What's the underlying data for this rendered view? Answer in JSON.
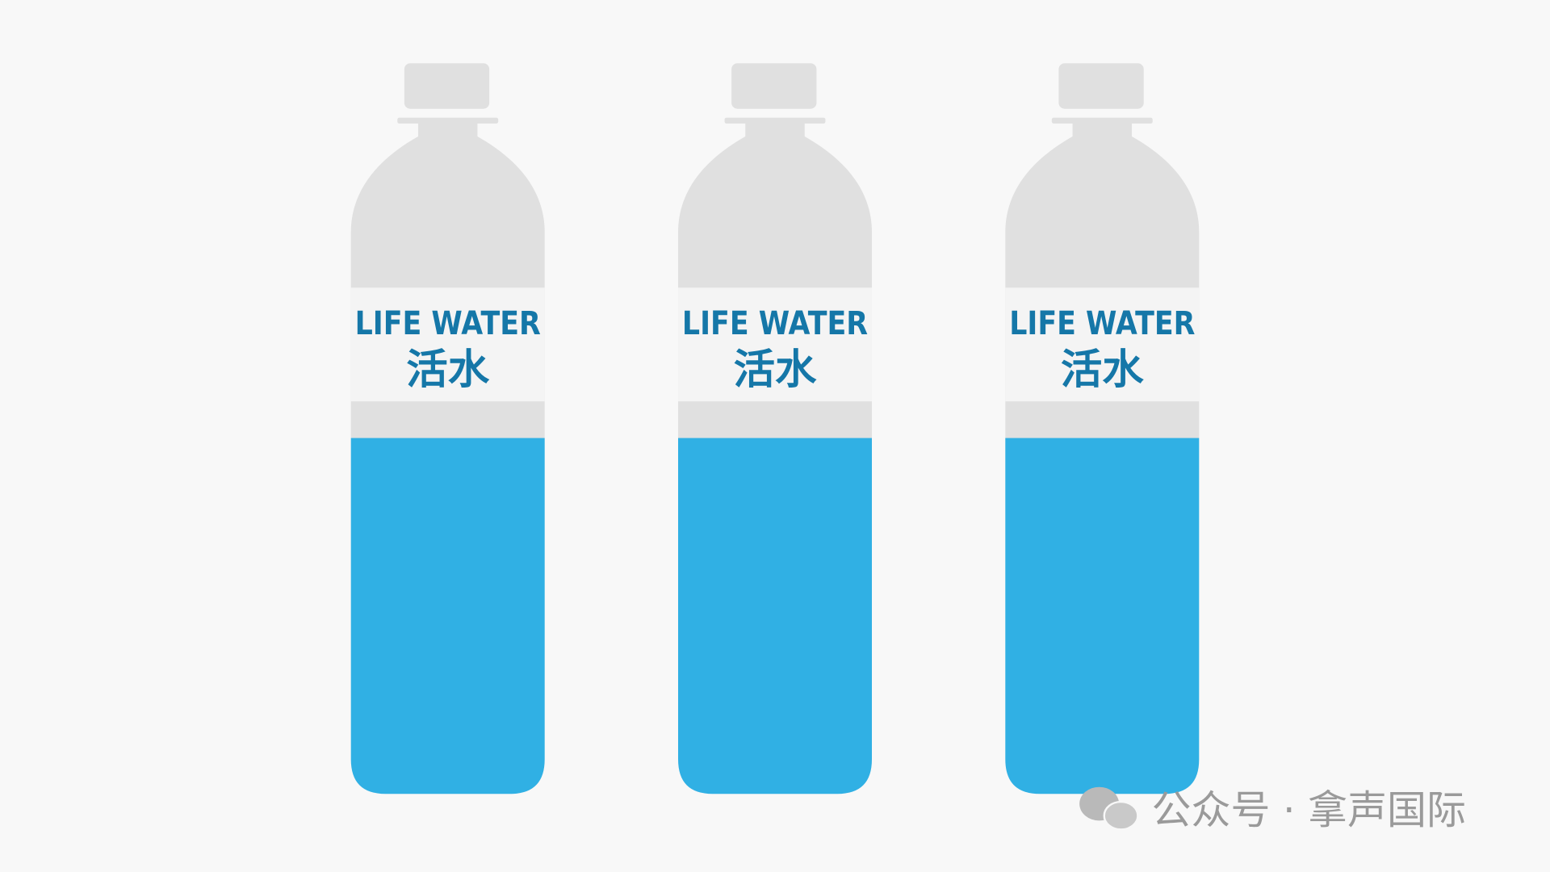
{
  "bottles": [
    {
      "label_en": "LIFE WATER",
      "label_zh": "活水"
    },
    {
      "label_en": "LIFE WATER",
      "label_zh": "活水"
    },
    {
      "label_en": "LIFE WATER",
      "label_zh": "活水"
    }
  ],
  "watermark": "公众号 · 拿声国际"
}
